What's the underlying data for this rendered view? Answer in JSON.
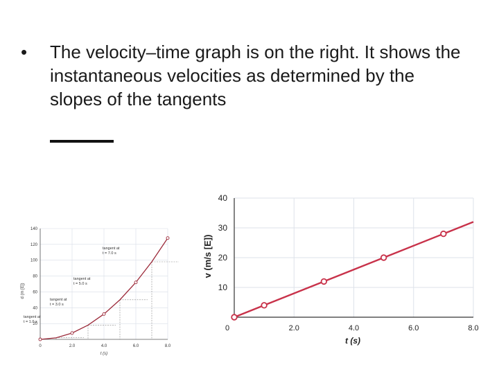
{
  "slide": {
    "bullet_symbol": "•",
    "bullet_text": "The velocity–time graph is on the right.  It shows the instantaneous velocities as determined by the slopes of the tangents"
  },
  "chart_data": [
    {
      "type": "line",
      "title": "",
      "xlabel": "t (s)",
      "ylabel": "d (m [E])",
      "xlim": [
        0,
        8
      ],
      "ylim": [
        0,
        140
      ],
      "x_ticks": [
        "0",
        "2.0",
        "4.0",
        "6.0",
        "8.0"
      ],
      "y_ticks": [
        "20",
        "40",
        "60",
        "80",
        "100",
        "120",
        "140"
      ],
      "grid": true,
      "curve_color": "#9c2a3a",
      "series": [
        {
          "x": [
            0,
            1,
            2,
            3,
            4,
            5,
            6,
            7,
            8
          ],
          "y": [
            0,
            2,
            8,
            18,
            32,
            50,
            72,
            98,
            128
          ]
        }
      ],
      "tangent_points": [
        {
          "x": 1.0,
          "y": 2
        },
        {
          "x": 3.0,
          "y": 18
        },
        {
          "x": 5.0,
          "y": 50
        },
        {
          "x": 7.0,
          "y": 98
        }
      ],
      "highlighted_points": [
        {
          "x": 0,
          "y": 0
        },
        {
          "x": 2,
          "y": 8
        },
        {
          "x": 4,
          "y": 32
        },
        {
          "x": 6,
          "y": 72
        },
        {
          "x": 8,
          "y": 128
        }
      ],
      "annotations": [
        {
          "line1": "tangent at",
          "line2": "t = 1.0 s"
        },
        {
          "line1": "tangent at",
          "line2": "t = 3.0 s"
        },
        {
          "line1": "tangent at",
          "line2": "t = 5.0 s"
        },
        {
          "line1": "tangent at",
          "line2": "t = 7.0 s"
        }
      ]
    },
    {
      "type": "line",
      "title": "",
      "xlabel": "t (s)",
      "ylabel": "v (m/s [E])",
      "xlim": [
        0,
        8
      ],
      "ylim": [
        0,
        40
      ],
      "x_ticks": [
        "0",
        "2.0",
        "4.0",
        "6.0",
        "8.0"
      ],
      "y_ticks": [
        "10",
        "20",
        "30",
        "40"
      ],
      "grid": true,
      "line_color": "#c8324a",
      "series": [
        {
          "x": [
            0,
            1,
            3,
            5,
            7,
            8
          ],
          "y": [
            0,
            4,
            12,
            20,
            28,
            32
          ]
        }
      ],
      "marker_x": [
        0,
        1,
        3,
        5,
        7
      ]
    }
  ]
}
